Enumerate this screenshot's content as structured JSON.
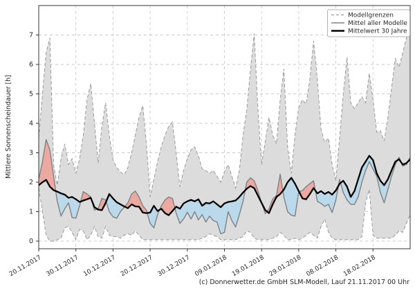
{
  "footer": {
    "copyright": "(c) Donnerwetter.de GmbH SLM-Modell, Lauf 21.11.2017 00 Uhr"
  },
  "chart_data": {
    "type": "area",
    "title": "",
    "xlabel": "",
    "ylabel": "Mittlere Sonnenscheindauer [h]",
    "ylim": [
      0,
      8
    ],
    "y_ticks": [
      0,
      1,
      2,
      3,
      4,
      5,
      6,
      7
    ],
    "grid": true,
    "legend_position": "top-right",
    "x_tick_labels": [
      "20.11.2017",
      "30.11.2017",
      "10.12.2017",
      "20.12.2017",
      "30.12.2017",
      "09.01.2018",
      "19.01.2018",
      "29.01.2018",
      "08.02.2018",
      "18.02.2018"
    ],
    "x_tick_days": [
      0,
      10,
      20,
      30,
      40,
      50,
      60,
      70,
      80,
      90
    ],
    "x_domain_days": [
      0,
      100
    ],
    "legend": [
      {
        "label": "Modellgrenzen",
        "style": "dashed-gray"
      },
      {
        "label": "Mittel aller Modelle",
        "style": "solid-gray"
      },
      {
        "label": "Mittelwert 30 Jahre",
        "style": "solid-black"
      }
    ],
    "colors": {
      "band": "#dcdcdc",
      "bound_line": "#9a9a9a",
      "model_line": "#808080",
      "clim_line": "#000000",
      "above_fill": "#eca9a1",
      "below_fill": "#bad9ea",
      "grid": "#c9c9c9",
      "frame": "#333333",
      "legend_border": "#b3b3b3"
    },
    "series": [
      {
        "name": "Modellgrenzen (Maximum)",
        "values": [
          3.5,
          5.0,
          6.4,
          6.9,
          2.6,
          1.9,
          2.8,
          3.3,
          2.6,
          2.8,
          2.3,
          2.8,
          3.6,
          4.8,
          5.35,
          4.0,
          2.65,
          3.9,
          4.7,
          3.6,
          2.75,
          2.5,
          2.35,
          2.25,
          2.5,
          3.0,
          3.6,
          4.2,
          4.6,
          3.3,
          1.5,
          2.1,
          2.7,
          3.2,
          3.6,
          3.9,
          4.05,
          3.0,
          1.85,
          2.4,
          2.8,
          3.1,
          3.2,
          2.9,
          2.45,
          2.4,
          2.3,
          2.4,
          2.2,
          2.0,
          2.35,
          2.6,
          2.2,
          1.8,
          2.4,
          3.6,
          4.45,
          5.8,
          7.05,
          4.5,
          2.6,
          3.4,
          4.2,
          3.6,
          3.3,
          4.8,
          5.85,
          3.2,
          2.3,
          3.6,
          4.55,
          4.8,
          4.65,
          5.5,
          6.8,
          5.5,
          3.8,
          3.35,
          3.5,
          2.6,
          2.05,
          3.5,
          5.0,
          6.25,
          4.7,
          4.5,
          4.7,
          4.9,
          4.7,
          5.7,
          4.8,
          3.7,
          3.75,
          3.4,
          4.2,
          5.2,
          6.2,
          5.9,
          6.4,
          6.9,
          7.5
        ]
      },
      {
        "name": "Modellgrenzen (Minimum)",
        "values": [
          1.8,
          1.0,
          0.2,
          0.0,
          0.0,
          0.05,
          0.1,
          0.45,
          0.5,
          0.3,
          0.05,
          0.4,
          0.35,
          0.05,
          0.2,
          0.5,
          0.15,
          0.1,
          0.5,
          0.2,
          0.15,
          0.15,
          0.1,
          0.2,
          0.25,
          0.2,
          0.35,
          0.2,
          0.05,
          0.05,
          0.05,
          0.05,
          0.05,
          0.05,
          0.05,
          0.05,
          0.05,
          0.05,
          0.05,
          0.05,
          0.05,
          0.05,
          0.05,
          0.05,
          0.1,
          0.15,
          0.25,
          0.2,
          0.15,
          0.05,
          0.05,
          0.05,
          0.05,
          0.05,
          0.1,
          0.15,
          0.35,
          0.3,
          0.1,
          0.05,
          0.05,
          0.05,
          0.05,
          0.1,
          0.15,
          0.3,
          0.2,
          0.05,
          0.05,
          0.1,
          0.05,
          0.1,
          0.2,
          0.3,
          0.2,
          0.1,
          0.5,
          0.75,
          0.3,
          0.1,
          0.05,
          0.05,
          0.05,
          0.05,
          0.05,
          0.05,
          0.05,
          0.15,
          1.3,
          1.75,
          0.2,
          0.1,
          0.1,
          0.1,
          0.1,
          0.1,
          0.2,
          0.35,
          0.3,
          0.6,
          0.9
        ]
      },
      {
        "name": "Mittel aller Modelle",
        "values": [
          2.1,
          2.7,
          3.45,
          3.1,
          2.2,
          1.35,
          0.85,
          1.1,
          1.3,
          0.8,
          0.78,
          1.2,
          1.68,
          1.6,
          1.5,
          1.05,
          1.1,
          1.45,
          1.4,
          1.0,
          0.82,
          0.78,
          1.0,
          1.15,
          1.3,
          1.6,
          1.7,
          1.5,
          1.2,
          1.05,
          0.6,
          0.45,
          0.9,
          1.2,
          1.4,
          1.5,
          1.45,
          0.95,
          0.6,
          0.75,
          0.98,
          0.75,
          1.0,
          0.72,
          0.9,
          0.65,
          0.85,
          0.7,
          0.65,
          0.25,
          0.3,
          1.0,
          0.7,
          0.48,
          0.9,
          1.35,
          2.0,
          2.15,
          2.05,
          1.72,
          1.3,
          0.93,
          1.1,
          1.43,
          1.55,
          2.27,
          1.5,
          1.0,
          0.88,
          0.85,
          1.67,
          1.72,
          1.85,
          1.95,
          2.05,
          1.35,
          1.28,
          1.18,
          1.25,
          0.97,
          1.4,
          2.1,
          1.65,
          1.4,
          1.25,
          1.25,
          1.5,
          2.0,
          2.4,
          2.7,
          2.45,
          2.2,
          1.65,
          1.3,
          1.75,
          2.2,
          2.6,
          2.85,
          2.55,
          2.6,
          2.85
        ]
      },
      {
        "name": "Mittelwert 30 Jahre",
        "values": [
          1.9,
          2.0,
          2.08,
          1.85,
          1.73,
          1.68,
          1.62,
          1.58,
          1.47,
          1.5,
          1.42,
          1.33,
          1.38,
          1.42,
          1.47,
          1.15,
          1.07,
          1.05,
          1.3,
          1.6,
          1.45,
          1.32,
          1.25,
          1.18,
          1.12,
          1.25,
          1.18,
          1.17,
          0.97,
          0.95,
          0.97,
          1.2,
          1.02,
          1.1,
          0.95,
          0.88,
          1.02,
          1.17,
          1.1,
          1.28,
          1.35,
          1.4,
          1.35,
          1.42,
          1.2,
          1.3,
          1.28,
          1.35,
          1.25,
          1.15,
          1.28,
          1.33,
          1.35,
          1.38,
          1.5,
          1.65,
          1.78,
          1.87,
          1.8,
          1.55,
          1.3,
          1.05,
          0.95,
          1.25,
          1.5,
          1.6,
          1.75,
          2.0,
          2.15,
          1.95,
          1.7,
          1.45,
          1.42,
          1.6,
          1.8,
          1.62,
          1.7,
          1.6,
          1.67,
          1.58,
          1.72,
          1.95,
          2.05,
          1.85,
          1.5,
          1.7,
          2.1,
          2.5,
          2.7,
          2.9,
          2.75,
          2.3,
          2.05,
          1.9,
          2.1,
          2.4,
          2.7,
          2.78,
          2.6,
          2.65,
          2.78
        ]
      }
    ]
  }
}
